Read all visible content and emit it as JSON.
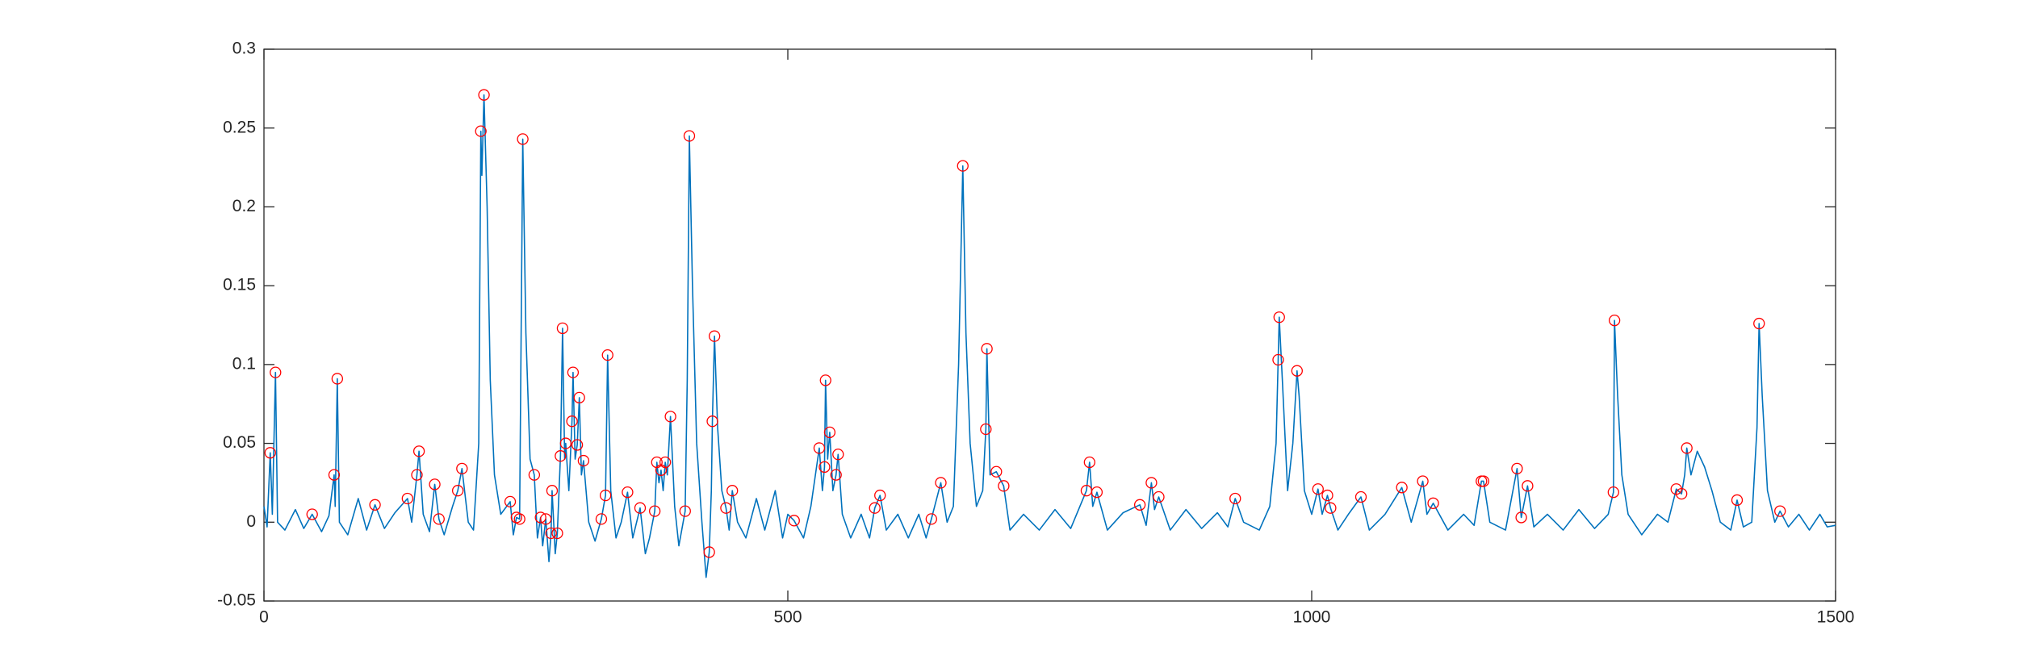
{
  "chart_data": {
    "type": "line",
    "xlim": [
      0,
      1500
    ],
    "xticks": [
      0,
      500,
      1000,
      1500
    ],
    "ylim": [
      -0.05,
      0.3
    ],
    "yticks": [
      -0.05,
      0,
      0.05,
      0.1,
      0.15,
      0.2,
      0.25,
      0.3
    ],
    "series": [
      {
        "style": "line",
        "color": "#0072bd",
        "x": [
          0,
          3,
          6,
          8,
          11,
          13,
          20,
          30,
          38,
          46,
          55,
          62,
          67,
          68,
          70,
          72,
          80,
          90,
          98,
          106,
          115,
          125,
          137,
          141,
          146,
          148,
          152,
          158,
          163,
          167,
          172,
          180,
          185,
          189,
          195,
          200,
          205,
          207,
          208,
          210,
          213,
          216,
          220,
          226,
          235,
          238,
          241,
          244,
          247,
          250,
          254,
          258,
          261,
          264,
          266,
          269,
          272,
          274,
          275,
          278,
          280,
          283,
          285,
          287,
          288,
          291,
          294,
          295,
          297,
          299,
          301,
          303,
          305,
          310,
          316,
          322,
          326,
          328,
          331,
          336,
          341,
          347,
          352,
          359,
          364,
          368,
          373,
          375,
          377,
          379,
          381,
          383,
          385,
          388,
          392,
          396,
          402,
          404,
          406,
          409,
          413,
          418,
          422,
          425,
          427,
          428,
          430,
          433,
          437,
          441,
          444,
          447,
          452,
          460,
          470,
          478,
          488,
          495,
          500,
          506,
          515,
          522,
          530,
          533,
          535,
          536,
          538,
          540,
          543,
          546,
          548,
          552,
          560,
          570,
          578,
          583,
          588,
          594,
          605,
          615,
          625,
          632,
          637,
          646,
          652,
          658,
          663,
          667,
          670,
          674,
          680,
          686,
          689,
          690,
          693,
          699,
          706,
          712,
          725,
          740,
          755,
          770,
          785,
          788,
          791,
          795,
          805,
          820,
          836,
          842,
          847,
          850,
          854,
          865,
          880,
          895,
          910,
          920,
          927,
          935,
          950,
          960,
          966,
          968,
          969,
          972,
          977,
          982,
          986,
          988,
          993,
          1000,
          1006,
          1010,
          1015,
          1018,
          1025,
          1035,
          1047,
          1055,
          1070,
          1086,
          1095,
          1106,
          1110,
          1116,
          1130,
          1145,
          1155,
          1162,
          1164,
          1170,
          1185,
          1196,
          1200,
          1206,
          1212,
          1225,
          1240,
          1255,
          1270,
          1283,
          1288,
          1289,
          1292,
          1296,
          1302,
          1315,
          1330,
          1340,
          1348,
          1353,
          1356,
          1358,
          1362,
          1368,
          1375,
          1382,
          1390,
          1400,
          1406,
          1412,
          1420,
          1425,
          1427,
          1430,
          1435,
          1442,
          1447,
          1455,
          1465,
          1475,
          1485,
          1492,
          1500
        ],
        "values": [
          0.01,
          -0.003,
          0.044,
          0.005,
          0.095,
          0.0,
          -0.005,
          0.008,
          -0.004,
          0.005,
          -0.006,
          0.004,
          0.03,
          0.01,
          0.091,
          0.0,
          -0.008,
          0.015,
          -0.005,
          0.011,
          -0.004,
          0.006,
          0.015,
          0.0,
          0.03,
          0.045,
          0.005,
          -0.006,
          0.024,
          0.002,
          -0.008,
          0.01,
          0.02,
          0.034,
          0.0,
          -0.005,
          0.05,
          0.248,
          0.22,
          0.271,
          0.2,
          0.09,
          0.03,
          0.005,
          0.013,
          -0.008,
          0.003,
          0.002,
          0.243,
          0.12,
          0.04,
          0.03,
          -0.01,
          0.003,
          -0.015,
          0.002,
          -0.025,
          -0.007,
          0.02,
          -0.02,
          -0.007,
          0.042,
          0.123,
          0.04,
          0.05,
          0.02,
          0.064,
          0.095,
          0.04,
          0.049,
          0.079,
          0.03,
          0.039,
          0.0,
          -0.012,
          0.002,
          0.017,
          0.106,
          0.02,
          -0.01,
          0.0,
          0.019,
          -0.01,
          0.009,
          -0.02,
          -0.01,
          0.007,
          0.038,
          0.025,
          0.033,
          0.02,
          0.038,
          0.03,
          0.067,
          0.01,
          -0.015,
          0.007,
          0.09,
          0.245,
          0.15,
          0.05,
          0.0,
          -0.035,
          -0.019,
          0.02,
          0.064,
          0.118,
          0.06,
          0.02,
          0.009,
          -0.005,
          0.02,
          0.0,
          -0.01,
          0.015,
          -0.005,
          0.02,
          -0.01,
          0.005,
          0.001,
          -0.01,
          0.01,
          0.047,
          0.02,
          0.035,
          0.09,
          0.04,
          0.057,
          0.02,
          0.03,
          0.043,
          0.005,
          -0.01,
          0.005,
          -0.01,
          0.009,
          0.017,
          -0.005,
          0.005,
          -0.01,
          0.005,
          -0.01,
          0.002,
          0.025,
          0.0,
          0.01,
          0.1,
          0.226,
          0.12,
          0.05,
          0.01,
          0.02,
          0.059,
          0.11,
          0.03,
          0.032,
          0.023,
          -0.005,
          0.005,
          -0.005,
          0.008,
          -0.004,
          0.02,
          0.038,
          0.01,
          0.019,
          -0.005,
          0.006,
          0.011,
          -0.002,
          0.025,
          0.008,
          0.016,
          -0.005,
          0.008,
          -0.004,
          0.006,
          -0.003,
          0.015,
          0.0,
          -0.005,
          0.01,
          0.05,
          0.103,
          0.13,
          0.09,
          0.02,
          0.05,
          0.096,
          0.08,
          0.02,
          0.005,
          0.021,
          0.005,
          0.017,
          0.009,
          -0.005,
          0.005,
          0.016,
          -0.005,
          0.005,
          0.022,
          0.0,
          0.026,
          0.005,
          0.012,
          -0.005,
          0.005,
          -0.002,
          0.026,
          0.026,
          0.0,
          -0.005,
          0.034,
          0.003,
          0.023,
          -0.003,
          0.005,
          -0.005,
          0.008,
          -0.004,
          0.005,
          0.019,
          0.128,
          0.08,
          0.03,
          0.005,
          -0.008,
          0.005,
          0.0,
          0.021,
          0.018,
          0.03,
          0.047,
          0.03,
          0.045,
          0.035,
          0.02,
          0.0,
          -0.005,
          0.014,
          -0.003,
          0.0,
          0.06,
          0.126,
          0.08,
          0.02,
          0.0,
          0.007,
          -0.003,
          0.005,
          -0.005,
          0.005,
          -0.003,
          -0.002
        ]
      },
      {
        "style": "circle",
        "color": "#ff0000",
        "x": [
          6,
          11,
          46,
          67,
          70,
          106,
          137,
          146,
          148,
          163,
          167,
          185,
          189,
          207,
          210,
          235,
          241,
          244,
          247,
          258,
          264,
          269,
          274,
          275,
          280,
          283,
          285,
          288,
          294,
          295,
          299,
          301,
          305,
          322,
          326,
          328,
          347,
          359,
          373,
          375,
          379,
          383,
          388,
          402,
          406,
          425,
          428,
          430,
          441,
          447,
          506,
          530,
          535,
          536,
          540,
          546,
          548,
          583,
          588,
          637,
          646,
          667,
          689,
          690,
          699,
          706,
          785,
          788,
          795,
          836,
          847,
          854,
          927,
          968,
          969,
          986,
          1006,
          1015,
          1018,
          1047,
          1086,
          1106,
          1116,
          1162,
          1164,
          1196,
          1200,
          1206,
          1288,
          1289,
          1348,
          1353,
          1358,
          1406,
          1427,
          1447
        ],
        "values": [
          0.044,
          0.095,
          0.005,
          0.03,
          0.091,
          0.011,
          0.015,
          0.03,
          0.045,
          0.024,
          0.002,
          0.02,
          0.034,
          0.248,
          0.271,
          0.013,
          0.003,
          0.002,
          0.243,
          0.03,
          0.003,
          0.002,
          -0.007,
          0.02,
          -0.007,
          0.042,
          0.123,
          0.05,
          0.064,
          0.095,
          0.049,
          0.079,
          0.039,
          0.002,
          0.017,
          0.106,
          0.019,
          0.009,
          0.007,
          0.038,
          0.033,
          0.038,
          0.067,
          0.007,
          0.245,
          -0.019,
          0.064,
          0.118,
          0.009,
          0.02,
          0.001,
          0.047,
          0.035,
          0.09,
          0.057,
          0.03,
          0.043,
          0.009,
          0.017,
          0.002,
          0.025,
          0.226,
          0.059,
          0.11,
          0.032,
          0.023,
          0.02,
          0.038,
          0.019,
          0.011,
          0.025,
          0.016,
          0.015,
          0.103,
          0.13,
          0.096,
          0.021,
          0.017,
          0.009,
          0.016,
          0.022,
          0.026,
          0.012,
          0.026,
          0.026,
          0.034,
          0.003,
          0.023,
          0.019,
          0.128,
          0.021,
          0.018,
          0.047,
          0.014,
          0.126,
          0.007
        ]
      }
    ]
  }
}
